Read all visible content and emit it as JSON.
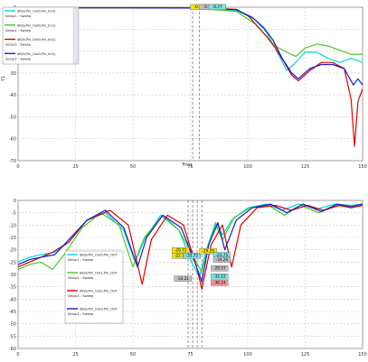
{
  "chart_data": [
    {
      "type": "line",
      "xlim": [
        0,
        150
      ],
      "ylim": [
        -75,
        0
      ],
      "xticks": [
        "0",
        "25",
        "50",
        "75",
        "100",
        "125",
        "150"
      ],
      "yticks": [
        "0",
        "-10",
        "-20",
        "-30",
        "-40",
        "-50",
        "-60",
        "-70"
      ],
      "ylabel": "Y1",
      "xlabel": "Freq",
      "legend_position": "top-left",
      "grid": true,
      "legend": [
        {
          "name": "dB(S(Pin_Out0,Pin_In0))",
          "setup": "Setup1 : Sweep",
          "color": "#00d8d8"
        },
        {
          "name": "dB(S(Pin_Out0,Pin_In1))",
          "setup": "Setup1 : Sweep",
          "color": "#44cc22"
        },
        {
          "name": "dB(S(Pin_Out0,Pin_In2))",
          "setup": "Setup1 : Sweep",
          "color": "#dd0000"
        },
        {
          "name": "dB(S(Pin_Out0,Pin_In3))",
          "setup": "Setup1 : Sweep",
          "color": "#1a1acc"
        }
      ],
      "markers": [
        {
          "text": "-0.75",
          "x": 75,
          "y": -0.6,
          "color": "#f0e020"
        },
        {
          "text": "-0.79",
          "x": 79,
          "y": -0.6,
          "color": "#c0c0c0"
        },
        {
          "text": "-0.77",
          "x": 83,
          "y": -0.6,
          "color": "#80e0e0"
        }
      ],
      "vlines": [
        76,
        79
      ],
      "series": [
        {
          "name": "dB(S(Pin_Out0,Pin_In0))",
          "color": "#00d8d8",
          "x": [
            0,
            25,
            50,
            75,
            95,
            103,
            108,
            112,
            117,
            120,
            125,
            130,
            135,
            140,
            145,
            150
          ],
          "y": [
            -0.3,
            -0.3,
            -0.3,
            -0.4,
            -1.5,
            -6,
            -12,
            -20,
            -31,
            -28,
            -22,
            -22,
            -25,
            -27,
            -25,
            -27
          ]
        },
        {
          "name": "dB(S(Pin_Out0,Pin_In1))",
          "color": "#44cc22",
          "x": [
            0,
            25,
            50,
            75,
            95,
            103,
            108,
            112,
            117,
            121,
            125,
            130,
            135,
            140,
            145,
            150
          ],
          "y": [
            -0.3,
            -0.3,
            -0.3,
            -0.4,
            -2,
            -8,
            -14,
            -19,
            -22,
            -24,
            -20,
            -18,
            -19,
            -21,
            -23,
            -23
          ]
        },
        {
          "name": "dB(S(Pin_Out0,Pin_In2))",
          "color": "#dd0000",
          "x": [
            0,
            25,
            50,
            75,
            95,
            100,
            104,
            108,
            112,
            116,
            119,
            122,
            127,
            132,
            137,
            142,
            145,
            146.5,
            148,
            150
          ],
          "y": [
            -0.3,
            -0.3,
            -0.3,
            -0.4,
            -1,
            -4,
            -9,
            -14,
            -20,
            -27,
            -33,
            -36,
            -31,
            -27,
            -27,
            -30,
            -45,
            -68,
            -46,
            -40
          ]
        },
        {
          "name": "dB(S(Pin_Out0,Pin_In3))",
          "color": "#1a1acc",
          "x": [
            0,
            25,
            50,
            75,
            95,
            102,
            107,
            111,
            115,
            119,
            122,
            127,
            132,
            137,
            142,
            146,
            148,
            150
          ],
          "y": [
            -0.3,
            -0.3,
            -0.3,
            -0.4,
            -1.2,
            -5,
            -10,
            -16,
            -25,
            -32,
            -35,
            -30,
            -28,
            -28,
            -30,
            -38,
            -35,
            -38
          ]
        }
      ]
    },
    {
      "type": "line",
      "xlim": [
        0,
        150
      ],
      "ylim": [
        -60,
        0
      ],
      "xticks": [
        "0",
        "25",
        "50",
        "75",
        "100",
        "125",
        "150"
      ],
      "yticks": [
        "0",
        "-5",
        "-10",
        "-15",
        "-20",
        "-25",
        "-30",
        "-35",
        "-40",
        "-45",
        "-50",
        "-55",
        "-60"
      ],
      "legend_position": "center-left",
      "grid": true,
      "legend": [
        {
          "name": "dB(S(Pin_Out0,Pin_OUT",
          "setup": "Setup1 : Sweep",
          "color": "#00d8d8"
        },
        {
          "name": "dB(S(Pin_Out1,Pin_OUT",
          "setup": "Setup1 : Sweep",
          "color": "#44cc22"
        },
        {
          "name": "dB(S(Pin_Out2,Pin_OUT",
          "setup": "Setup1 : Sweep",
          "color": "#dd0000"
        },
        {
          "name": "dB(S(Pin_Out3,Pin_OUT",
          "setup": "Setup1 : Sweep",
          "color": "#1a1acc"
        }
      ],
      "markers": [
        {
          "text": "-29.71",
          "x": 67,
          "y": -20.7,
          "color": "#f0e020"
        },
        {
          "text": "-22.75",
          "x": 67,
          "y": -23.0,
          "color": "#f0e020"
        },
        {
          "text": "-33.72",
          "x": 72,
          "y": -23.0,
          "color": "#80e0e0"
        },
        {
          "text": "-29.25",
          "x": 79,
          "y": -21.1,
          "color": "#f0e020"
        },
        {
          "text": "-22.75",
          "x": 85,
          "y": -22.7,
          "color": "#80e0e0"
        },
        {
          "text": "-34.26",
          "x": 85,
          "y": -24.6,
          "color": "#c0c0c0"
        },
        {
          "text": "-29.57",
          "x": 84,
          "y": -28.1,
          "color": "#c0c0c0"
        },
        {
          "text": "-33.21",
          "x": 68,
          "y": -32.3,
          "color": "#c0c0c0"
        },
        {
          "text": "-32.12",
          "x": 84,
          "y": -31.4,
          "color": "#80e0e0"
        },
        {
          "text": "-36.24",
          "x": 84,
          "y": -34.0,
          "color": "#ff9090"
        }
      ],
      "vlines": [
        74,
        76,
        78,
        80
      ],
      "series": [
        {
          "name": "dB(S(Pin_Out0,Pin_OUT",
          "color": "#00d8d8",
          "x": [
            0,
            5,
            10,
            16,
            22,
            30,
            38,
            46,
            51,
            55,
            62,
            70,
            76,
            79,
            82,
            86,
            89,
            93,
            100,
            108,
            115,
            122,
            130,
            138,
            145,
            150
          ],
          "y": [
            -25,
            -23,
            -22,
            -21,
            -17,
            -8,
            -5,
            -12,
            -25,
            -16,
            -6,
            -12,
            -26,
            -31,
            -20,
            -9,
            -14,
            -8,
            -3,
            -1.5,
            -4,
            -1.5,
            -3.5,
            -1.5,
            -2,
            -1.5
          ]
        },
        {
          "name": "dB(S(Pin_Out1,Pin_OUT",
          "color": "#44cc22",
          "x": [
            0,
            5,
            10,
            15,
            20,
            28,
            36,
            44,
            50,
            55,
            63,
            70,
            77,
            80,
            83,
            86,
            89,
            94,
            101,
            109,
            116,
            123,
            131,
            139,
            145,
            150
          ],
          "y": [
            -28,
            -26,
            -25,
            -28,
            -22,
            -11,
            -5,
            -10,
            -27,
            -15,
            -6,
            -12,
            -24,
            -29,
            -18,
            -10,
            -16,
            -7,
            -3,
            -2,
            -6,
            -2,
            -5,
            -2,
            -3,
            -2
          ]
        },
        {
          "name": "dB(S(Pin_Out2,Pin_OUT",
          "color": "#dd0000",
          "x": [
            0,
            5,
            10,
            15,
            22,
            30,
            40,
            48,
            54,
            58,
            65,
            72,
            78,
            80,
            84,
            89,
            93,
            97,
            104,
            112,
            119,
            126,
            133,
            140,
            145,
            150
          ],
          "y": [
            -27,
            -25,
            -23,
            -21,
            -17,
            -8,
            -4,
            -10,
            -34,
            -16,
            -6,
            -10,
            -28,
            -36,
            -18,
            -10,
            -27,
            -10,
            -3,
            -2,
            -4,
            -2,
            -4,
            -2,
            -3,
            -2
          ]
        },
        {
          "name": "dB(S(Pin_Out3,Pin_OUT",
          "color": "#1a1acc",
          "x": [
            0,
            5,
            10,
            16,
            22,
            30,
            38,
            46,
            52,
            56,
            63,
            71,
            77,
            80,
            83,
            87,
            90,
            95,
            102,
            110,
            117,
            124,
            132,
            139,
            145,
            150
          ],
          "y": [
            -26,
            -24,
            -23,
            -22,
            -16,
            -8,
            -4,
            -11,
            -27,
            -15,
            -6,
            -11,
            -25,
            -33,
            -18,
            -9,
            -20,
            -8,
            -3,
            -1.5,
            -5,
            -1.5,
            -4.5,
            -1.5,
            -2.5,
            -1.5
          ]
        }
      ]
    }
  ]
}
